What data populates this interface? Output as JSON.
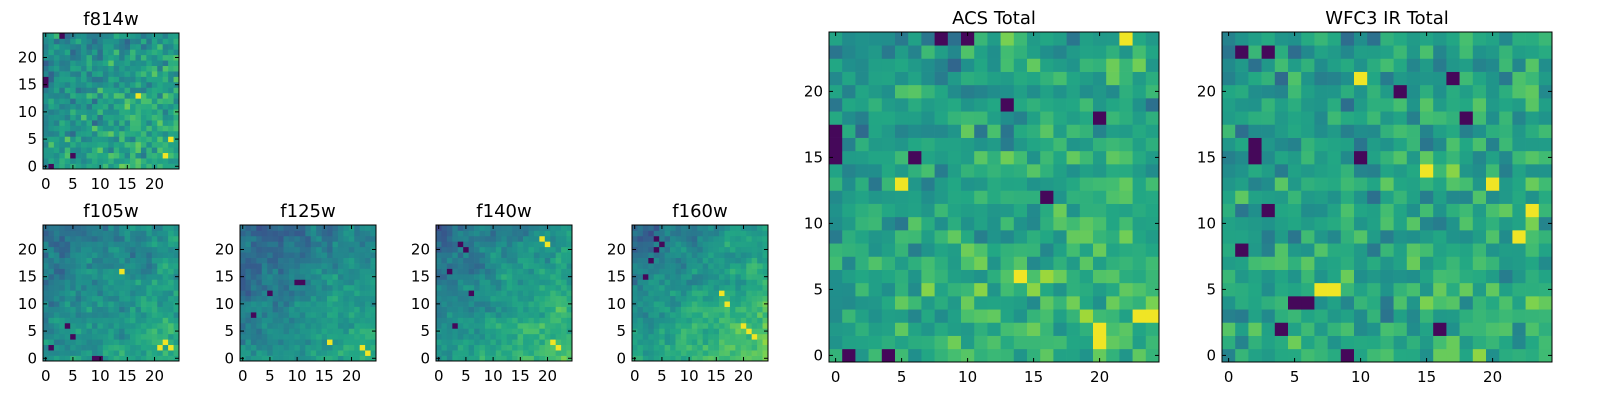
{
  "chart_data": [
    {
      "id": "f814w",
      "type": "heatmap",
      "title": "f814w",
      "grid_size": 25,
      "colormap": "viridis",
      "xticks": [
        0,
        5,
        10,
        15,
        20
      ],
      "yticks": [
        0,
        5,
        10,
        15,
        20
      ],
      "xlim": [
        -0.5,
        24.5
      ],
      "ylim": [
        -0.5,
        24.5
      ],
      "seed": 814,
      "mean": 0.55,
      "contrast": 0.18,
      "gradient": 0.1,
      "smoothness": 0.1,
      "dark_cells": [
        [
          0,
          15
        ],
        [
          0,
          16
        ],
        [
          1,
          0
        ],
        [
          5,
          2
        ],
        [
          3,
          24
        ]
      ],
      "bright_cells": [
        [
          22,
          2
        ],
        [
          23,
          5
        ],
        [
          17,
          13
        ]
      ]
    },
    {
      "id": "f105w",
      "type": "heatmap",
      "title": "f105w",
      "grid_size": 25,
      "colormap": "viridis",
      "xticks": [
        0,
        5,
        10,
        15,
        20
      ],
      "yticks": [
        0,
        5,
        10,
        15,
        20
      ],
      "xlim": [
        -0.5,
        24.5
      ],
      "ylim": [
        -0.5,
        24.5
      ],
      "seed": 105,
      "mean": 0.5,
      "contrast": 0.16,
      "gradient": 0.14,
      "smoothness": 0.45,
      "dark_cells": [
        [
          4,
          6
        ],
        [
          9,
          0
        ],
        [
          10,
          0
        ],
        [
          1,
          2
        ],
        [
          5,
          4
        ]
      ],
      "bright_cells": [
        [
          21,
          2
        ],
        [
          22,
          3
        ],
        [
          14,
          16
        ],
        [
          23,
          2
        ]
      ]
    },
    {
      "id": "f125w",
      "type": "heatmap",
      "title": "f125w",
      "grid_size": 25,
      "colormap": "viridis",
      "xticks": [
        0,
        5,
        10,
        15,
        20
      ],
      "yticks": [
        0,
        5,
        10,
        15,
        20
      ],
      "xlim": [
        -0.5,
        24.5
      ],
      "ylim": [
        -0.5,
        24.5
      ],
      "seed": 125,
      "mean": 0.47,
      "contrast": 0.16,
      "gradient": 0.16,
      "smoothness": 0.5,
      "dark_cells": [
        [
          10,
          14
        ],
        [
          11,
          14
        ],
        [
          5,
          12
        ],
        [
          2,
          8
        ]
      ],
      "bright_cells": [
        [
          16,
          3
        ],
        [
          22,
          2
        ],
        [
          23,
          1
        ]
      ]
    },
    {
      "id": "f140w",
      "type": "heatmap",
      "title": "f140w",
      "grid_size": 25,
      "colormap": "viridis",
      "xticks": [
        0,
        5,
        10,
        15,
        20
      ],
      "yticks": [
        0,
        5,
        10,
        15,
        20
      ],
      "xlim": [
        -0.5,
        24.5
      ],
      "ylim": [
        -0.5,
        24.5
      ],
      "seed": 140,
      "mean": 0.53,
      "contrast": 0.17,
      "gradient": 0.2,
      "smoothness": 0.55,
      "dark_cells": [
        [
          4,
          21
        ],
        [
          5,
          20
        ],
        [
          2,
          16
        ],
        [
          3,
          6
        ],
        [
          6,
          12
        ]
      ],
      "bright_cells": [
        [
          19,
          22
        ],
        [
          20,
          21
        ],
        [
          21,
          3
        ],
        [
          22,
          2
        ]
      ]
    },
    {
      "id": "f160w",
      "type": "heatmap",
      "title": "f160w",
      "grid_size": 25,
      "colormap": "viridis",
      "xticks": [
        0,
        5,
        10,
        15,
        20
      ],
      "yticks": [
        0,
        5,
        10,
        15,
        20
      ],
      "xlim": [
        -0.5,
        24.5
      ],
      "ylim": [
        -0.5,
        24.5
      ],
      "seed": 160,
      "mean": 0.56,
      "contrast": 0.17,
      "gradient": 0.22,
      "smoothness": 0.55,
      "dark_cells": [
        [
          4,
          22
        ],
        [
          5,
          21
        ],
        [
          4,
          20
        ],
        [
          3,
          18
        ],
        [
          2,
          15
        ]
      ],
      "bright_cells": [
        [
          16,
          12
        ],
        [
          17,
          10
        ],
        [
          21,
          5
        ],
        [
          22,
          4
        ],
        [
          20,
          6
        ]
      ]
    },
    {
      "id": "acs-total",
      "type": "heatmap",
      "title": "ACS Total",
      "grid_size": 25,
      "colormap": "viridis",
      "xticks": [
        0,
        5,
        10,
        15,
        20
      ],
      "yticks": [
        0,
        5,
        10,
        15,
        20
      ],
      "xlim": [
        -0.5,
        24.5
      ],
      "ylim": [
        -0.5,
        24.5
      ],
      "seed": 9001,
      "mean": 0.6,
      "contrast": 0.17,
      "gradient": 0.08,
      "smoothness": 0.0,
      "dark_cells": [
        [
          0,
          16
        ],
        [
          0,
          17
        ],
        [
          0,
          15
        ],
        [
          6,
          15
        ],
        [
          4,
          0
        ],
        [
          1,
          0
        ],
        [
          8,
          24
        ],
        [
          10,
          24
        ],
        [
          13,
          19
        ],
        [
          20,
          18
        ],
        [
          16,
          12
        ]
      ],
      "bright_cells": [
        [
          20,
          1
        ],
        [
          20,
          2
        ],
        [
          23,
          3
        ],
        [
          24,
          3
        ],
        [
          5,
          13
        ],
        [
          14,
          6
        ],
        [
          22,
          24
        ]
      ]
    },
    {
      "id": "wfc3-ir-total",
      "type": "heatmap",
      "title": "WFC3 IR Total",
      "grid_size": 25,
      "colormap": "viridis",
      "xticks": [
        0,
        5,
        10,
        15,
        20
      ],
      "yticks": [
        0,
        5,
        10,
        15,
        20
      ],
      "xlim": [
        -0.5,
        24.5
      ],
      "ylim": [
        -0.5,
        24.5
      ],
      "seed": 7007,
      "mean": 0.58,
      "contrast": 0.17,
      "gradient": 0.06,
      "smoothness": 0.0,
      "dark_cells": [
        [
          1,
          23
        ],
        [
          3,
          23
        ],
        [
          2,
          15
        ],
        [
          2,
          16
        ],
        [
          10,
          15
        ],
        [
          1,
          8
        ],
        [
          3,
          11
        ],
        [
          5,
          4
        ],
        [
          6,
          4
        ],
        [
          4,
          2
        ],
        [
          16,
          2
        ],
        [
          9,
          0
        ],
        [
          18,
          18
        ],
        [
          13,
          20
        ],
        [
          17,
          21
        ]
      ],
      "bright_cells": [
        [
          7,
          5
        ],
        [
          8,
          5
        ],
        [
          15,
          14
        ],
        [
          20,
          13
        ],
        [
          23,
          11
        ],
        [
          22,
          9
        ],
        [
          10,
          21
        ]
      ]
    }
  ]
}
